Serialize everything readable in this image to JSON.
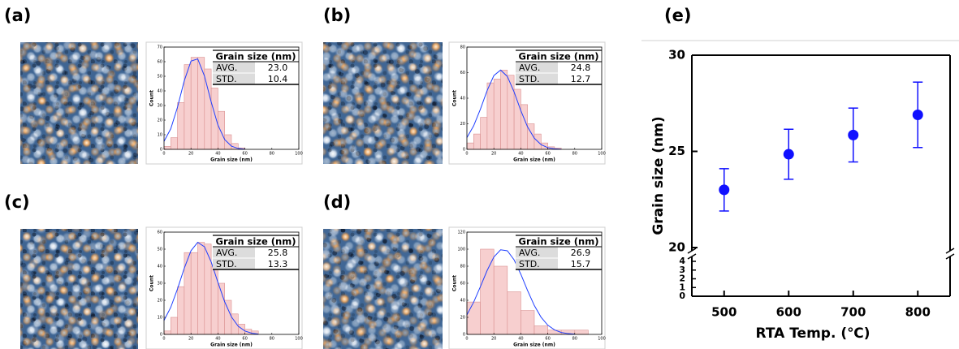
{
  "chart_data": [
    {
      "type": "histogram",
      "panel_label": "(a)",
      "xlabel": "Grain size (nm)",
      "ylabel": "Count",
      "bins": [
        0,
        5,
        10,
        15,
        20,
        25,
        30,
        35,
        40,
        45,
        50,
        55,
        60
      ],
      "values": [
        2,
        8,
        32,
        58,
        63,
        63,
        55,
        42,
        26,
        10,
        4,
        1
      ],
      "color": "#f7cfcf",
      "edge_color": "#d98f8f",
      "xlim": [
        0,
        100
      ],
      "xticks": [
        0,
        20,
        40,
        60,
        80,
        100
      ],
      "ylim": [
        0,
        70
      ],
      "yticks": [
        0,
        10,
        20,
        30,
        40,
        50,
        60,
        70
      ],
      "fit": {
        "color": "#1f3fff",
        "x": [
          0,
          5,
          10,
          15,
          20,
          25,
          30,
          35,
          40,
          45,
          50,
          55,
          60
        ],
        "values": [
          5.5,
          14.1,
          28.9,
          46.9,
          60.4,
          61.9,
          50.2,
          32.4,
          16.6,
          6.7,
          2.2,
          0.6,
          0.1
        ]
      },
      "table": {
        "header": "Grain size (nm)",
        "rows": [
          [
            "AVG.",
            "23.0"
          ],
          [
            "STD.",
            "10.4"
          ]
        ]
      }
    },
    {
      "type": "histogram",
      "panel_label": "(b)",
      "xlabel": "Grain size (nm)",
      "ylabel": "Count",
      "bins": [
        0,
        5,
        10,
        15,
        20,
        25,
        30,
        35,
        40,
        45,
        50,
        55,
        60,
        65,
        70,
        75
      ],
      "values": [
        5,
        12,
        25,
        52,
        55,
        62,
        58,
        47,
        35,
        20,
        12,
        5,
        2,
        1,
        0
      ],
      "color": "#f7cfcf",
      "edge_color": "#d98f8f",
      "xlim": [
        0,
        100
      ],
      "xticks": [
        0,
        20,
        40,
        60,
        80,
        100
      ],
      "ylim": [
        0,
        80
      ],
      "yticks": [
        0,
        20,
        40,
        60,
        80
      ],
      "fit": {
        "color": "#1f3fff",
        "x": [
          0,
          5,
          10,
          15,
          20,
          25,
          30,
          35,
          40,
          45,
          50,
          55,
          60,
          65,
          70
        ],
        "values": [
          9.2,
          18.4,
          31.4,
          46.0,
          57.7,
          62.0,
          57.0,
          44.9,
          30.3,
          17.5,
          8.7,
          3.7,
          1.3,
          0.4,
          0.1
        ]
      },
      "table": {
        "header": "Grain size (nm)",
        "rows": [
          [
            "AVG.",
            "24.8"
          ],
          [
            "STD.",
            "12.7"
          ]
        ]
      }
    },
    {
      "type": "histogram",
      "panel_label": "(c)",
      "xlabel": "Grain size (nm)",
      "ylabel": "Count",
      "bins": [
        0,
        5,
        10,
        15,
        20,
        25,
        30,
        35,
        40,
        45,
        50,
        55,
        60,
        65,
        70
      ],
      "values": [
        2,
        10,
        28,
        48,
        48,
        54,
        53,
        40,
        30,
        20,
        12,
        6,
        3,
        2
      ],
      "color": "#f7cfcf",
      "edge_color": "#d98f8f",
      "xlim": [
        0,
        100
      ],
      "xticks": [
        0,
        20,
        40,
        60,
        80,
        100
      ],
      "ylim": [
        0,
        60
      ],
      "yticks": [
        0,
        10,
        20,
        30,
        40,
        50,
        60
      ],
      "fit": {
        "color": "#1f3fff",
        "x": [
          0,
          5,
          10,
          15,
          20,
          25,
          30,
          35,
          40,
          45,
          50,
          55,
          60,
          65,
          70
        ],
        "values": [
          8.2,
          15.9,
          26.7,
          38.8,
          49.1,
          54.0,
          51.4,
          42.5,
          30.5,
          19.1,
          10.3,
          4.8,
          2.0,
          0.7,
          0.2
        ]
      },
      "table": {
        "header": "Grain size (nm)",
        "rows": [
          [
            "AVG.",
            "25.8"
          ],
          [
            "STD.",
            "13.3"
          ]
        ]
      }
    },
    {
      "type": "histogram",
      "panel_label": "(d)",
      "xlabel": "Grain size (nm)",
      "ylabel": "Count",
      "bins": [
        0,
        10,
        20,
        30,
        40,
        50,
        60,
        70,
        80,
        90
      ],
      "values": [
        38,
        100,
        80,
        50,
        28,
        10,
        5,
        5,
        5
      ],
      "color": "#f7cfcf",
      "edge_color": "#d98f8f",
      "xlim": [
        0,
        100
      ],
      "xticks": [
        0,
        20,
        40,
        60,
        80,
        100
      ],
      "ylim": [
        0,
        120
      ],
      "yticks": [
        0,
        20,
        40,
        60,
        80,
        100,
        120
      ],
      "fit": {
        "color": "#1f3fff",
        "x": [
          0,
          5,
          10,
          15,
          20,
          25,
          30,
          35,
          40,
          45,
          50,
          55,
          60,
          65,
          70,
          75,
          80
        ],
        "values": [
          23.0,
          37.8,
          56.0,
          75.0,
          90.8,
          99.3,
          98.1,
          87.5,
          70.6,
          51.5,
          33.9,
          20.2,
          10.8,
          5.3,
          2.3,
          0.9,
          0.3
        ]
      },
      "table": {
        "header": "Grain size (nm)",
        "rows": [
          [
            "AVG.",
            "26.9"
          ],
          [
            "STD.",
            "15.7"
          ]
        ]
      }
    },
    {
      "type": "scatter",
      "panel_label": "(e)",
      "xlabel": "RTA Temp. (℃)",
      "ylabel": "Grain size (nm)",
      "x": [
        500,
        600,
        700,
        800
      ],
      "values": [
        23.0,
        24.85,
        25.85,
        26.9
      ],
      "errors": [
        1.1,
        1.3,
        1.4,
        1.7
      ],
      "color": "#1010ff",
      "xlim": [
        450,
        850
      ],
      "xticks": [
        500,
        600,
        700,
        800
      ],
      "ylim": [
        20,
        30
      ],
      "yticks": [
        20,
        25,
        30
      ],
      "ylim_lower": [
        0,
        4
      ],
      "yticks_lower": [
        0,
        1,
        2,
        3,
        4
      ]
    }
  ]
}
